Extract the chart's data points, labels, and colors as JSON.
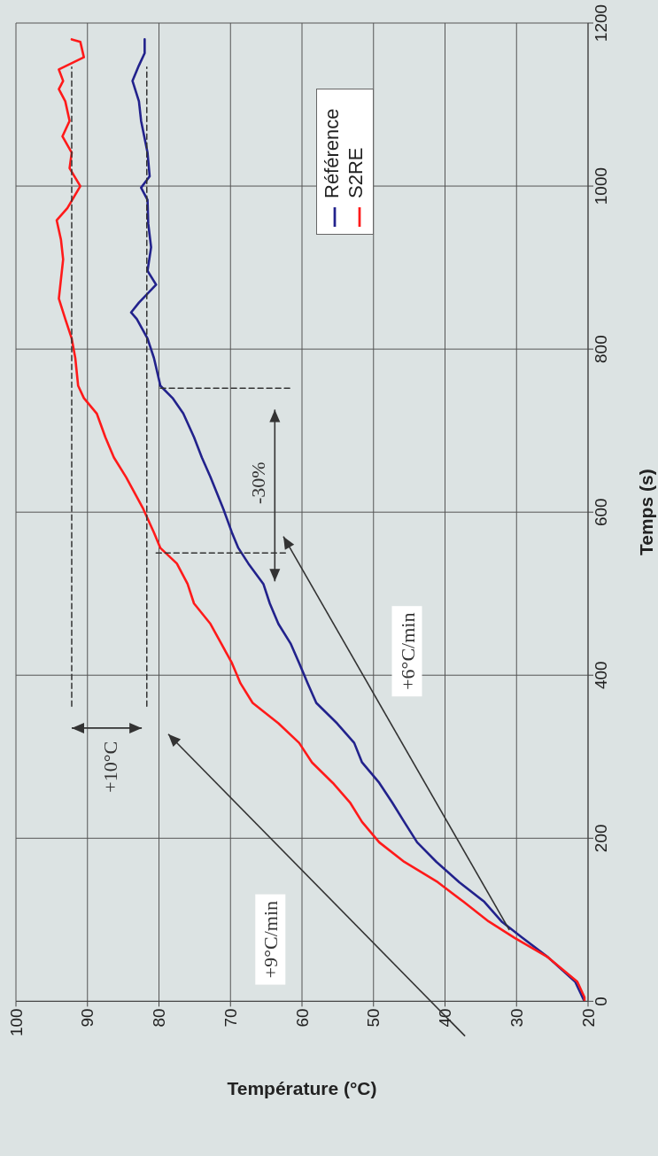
{
  "chart_data": {
    "type": "line",
    "xlabel": "Température (°C)",
    "ylabel": "Temps (s)",
    "xlim": [
      100,
      20
    ],
    "xticks": [
      100,
      90,
      80,
      70,
      60,
      50,
      40,
      30,
      20
    ],
    "ylim": [
      0,
      1200
    ],
    "yticks": [
      0,
      200,
      400,
      600,
      800,
      1000,
      1200
    ],
    "grid": true,
    "legend": "top",
    "marker": "none",
    "line_style": "solid",
    "series": [
      {
        "name": "Référence",
        "color": "#22228c",
        "values": [
          0,
          24,
          54,
          78,
          98,
          122,
          146,
          171,
          195,
          220,
          244,
          268,
          293,
          317,
          341,
          366,
          390,
          415,
          439,
          463,
          488,
          512,
          537,
          556,
          575,
          604,
          643,
          667,
          692,
          721,
          740,
          755,
          789,
          813,
          837,
          845,
          857,
          879,
          896,
          925,
          954,
          983,
          998,
          1012,
          1041,
          1080,
          1104,
          1129,
          1148,
          1163,
          1180
        ],
        "x": [
          20.5,
          21.8,
          25.6,
          29.2,
          32.1,
          34.5,
          38,
          41.2,
          43.9,
          45.7,
          47.4,
          49.2,
          51.6,
          52.7,
          55.1,
          58,
          59.2,
          60.4,
          61.6,
          63.3,
          64.5,
          65.4,
          67.5,
          68.9,
          69.8,
          71,
          72.8,
          74,
          75.1,
          76.6,
          78.1,
          79.8,
          80.7,
          81.6,
          83.1,
          83.9,
          82.8,
          80.4,
          81.6,
          81.1,
          81.5,
          81.6,
          82.5,
          81.3,
          81.6,
          82.5,
          82.8,
          83.7,
          82.8,
          82,
          82
        ]
      },
      {
        "name": "S2RE",
        "color": "#ff1a1a",
        "values": [
          0,
          5,
          24,
          54,
          78,
          98,
          122,
          146,
          171,
          195,
          220,
          244,
          268,
          293,
          317,
          341,
          366,
          390,
          415,
          439,
          463,
          488,
          512,
          537,
          556,
          575,
          604,
          643,
          667,
          692,
          721,
          740,
          755,
          789,
          813,
          837,
          862,
          886,
          910,
          934,
          958,
          973,
          1000,
          1022,
          1041,
          1061,
          1080,
          1104,
          1119,
          1129,
          1143,
          1158,
          1177,
          1180
        ],
        "x": [
          20.5,
          20.5,
          21.5,
          25.6,
          30.3,
          33.9,
          37.4,
          41,
          45.7,
          49.2,
          51.6,
          53.3,
          55.7,
          58.6,
          60.4,
          63.3,
          66.9,
          68.6,
          69.8,
          71.3,
          72.8,
          75.1,
          76,
          77.5,
          79.8,
          80.7,
          82.2,
          84.6,
          86.3,
          87.5,
          88.7,
          90.5,
          91.3,
          91.7,
          92.2,
          93.1,
          94,
          93.7,
          93.4,
          93.7,
          94.3,
          92.8,
          91,
          92.5,
          92.2,
          93.5,
          92.5,
          93.1,
          94,
          93.4,
          94,
          90.5,
          91,
          92.2
        ]
      },
      {
        "type": "line",
        "color": "#333333",
        "line_style": "dashed",
        "values": [
          362,
          1146
        ],
        "x": [
          92.2,
          92.2
        ]
      },
      {
        "type": "line",
        "color": "#333333",
        "line_style": "dashed",
        "values": [
          362,
          1146
        ],
        "x": [
          81.7,
          81.7
        ]
      },
      {
        "type": "line",
        "color": "#333333",
        "line_style": "dashed",
        "values": [
          550,
          550
        ],
        "x": [
          80.4,
          61.9
        ]
      },
      {
        "type": "line",
        "color": "#333333",
        "line_style": "dashed",
        "values": [
          752,
          752
        ],
        "x": [
          79.8,
          61.6
        ]
      }
    ],
    "annotations": [
      "+10°C",
      "-30%",
      "+9°C/min",
      "+6°C/min"
    ]
  }
}
